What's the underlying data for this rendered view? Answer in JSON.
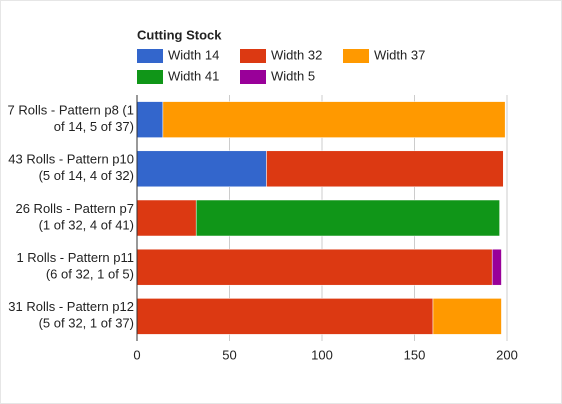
{
  "chart_data": {
    "type": "stacked-bar-horizontal",
    "title": "Cutting Stock",
    "categories": [
      "7 Rolls - Pattern p8 (1 of 14, 5 of 37)",
      "43 Rolls - Pattern p10 (5 of 14, 4 of 32)",
      "26 Rolls - Pattern p7 (1 of 32, 4 of 41)",
      "1 Rolls - Pattern p11 (6 of 32, 1 of 5)",
      "31 Rolls - Pattern p12 (5 of 32, 1 of 37)"
    ],
    "series": [
      {
        "name": "Width 14",
        "color": "#3366cc",
        "values": [
          14,
          70,
          0,
          0,
          0
        ]
      },
      {
        "name": "Width 32",
        "color": "#dc3912",
        "values": [
          0,
          128,
          32,
          192,
          160
        ]
      },
      {
        "name": "Width 37",
        "color": "#ff9900",
        "values": [
          185,
          0,
          0,
          0,
          37
        ]
      },
      {
        "name": "Width 41",
        "color": "#109618",
        "values": [
          0,
          0,
          164,
          0,
          0
        ]
      },
      {
        "name": "Width 5",
        "color": "#990099",
        "values": [
          0,
          0,
          0,
          5,
          0
        ]
      }
    ],
    "xlim": [
      0,
      200
    ],
    "xticks": [
      0,
      50,
      100,
      150,
      200
    ],
    "grid": true
  }
}
